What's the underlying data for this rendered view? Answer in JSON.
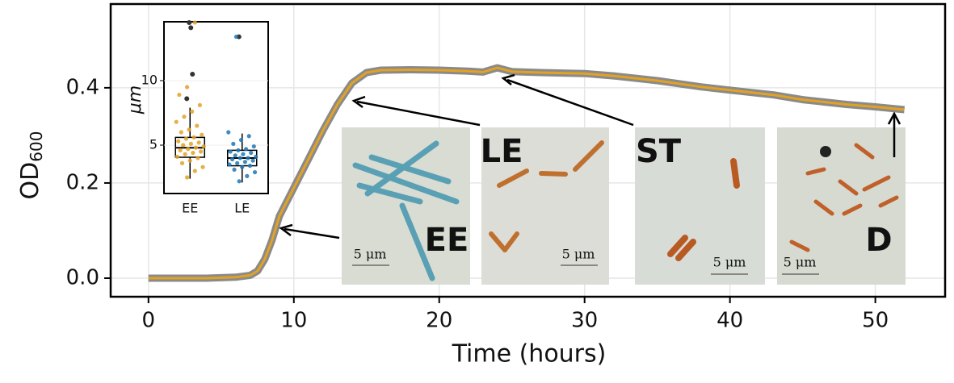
{
  "chart_data": [
    {
      "type": "line",
      "x_label": "Time (hours)",
      "y_label": "OD",
      "y_label_sub": "600",
      "x": [
        0,
        2,
        4,
        6,
        7,
        7.5,
        8,
        8.5,
        9,
        10,
        11,
        12,
        13,
        14,
        15,
        16,
        18,
        20,
        22,
        23,
        24,
        25,
        27,
        30,
        32,
        35,
        38,
        40,
        43,
        45,
        48,
        50,
        52
      ],
      "values": [
        0.0,
        0.0,
        0.0,
        0.002,
        0.006,
        0.015,
        0.04,
        0.08,
        0.13,
        0.19,
        0.25,
        0.31,
        0.365,
        0.41,
        0.432,
        0.437,
        0.438,
        0.437,
        0.435,
        0.433,
        0.442,
        0.434,
        0.432,
        0.43,
        0.425,
        0.415,
        0.402,
        0.395,
        0.385,
        0.375,
        0.365,
        0.36,
        0.354
      ],
      "color": "#e2a224",
      "band_color": "#8a8a8a",
      "xlim": [
        -2.6,
        54.8
      ],
      "ylim": [
        -0.039,
        0.576
      ],
      "xticks": [
        0,
        10,
        20,
        30,
        40,
        50
      ],
      "yticks": [
        {
          "value": 0,
          "label": "0.0"
        },
        {
          "value": 0.2,
          "label": "0.2"
        },
        {
          "value": 0.4,
          "label": "0.4"
        }
      ],
      "grid": true,
      "annotations": [
        "EE",
        "LE",
        "ST",
        "D"
      ],
      "scale_label": "5 μm"
    },
    {
      "type": "box",
      "y_label": "μm",
      "categories": [
        "EE",
        "LE"
      ],
      "colors": [
        "#e2a224",
        "#1f77b4"
      ],
      "boxes": [
        {
          "whislo": 2.4,
          "q1": 4.06,
          "med": 4.8,
          "q3": 5.6,
          "whishi": 7.9,
          "outliers": [
            8.6,
            10.5,
            14.1,
            14.5
          ]
        },
        {
          "whislo": 2.1,
          "q1": 3.4,
          "med": 4.0,
          "q3": 4.6,
          "whishi": 5.9,
          "outliers": [
            13.4
          ]
        }
      ],
      "points": [
        [
          2.5,
          3.0,
          3.3,
          3.6,
          3.8,
          4.0,
          4.1,
          4.3,
          4.4,
          4.5,
          4.6,
          4.7,
          4.8,
          4.9,
          5.0,
          5.1,
          5.2,
          5.3,
          5.5,
          5.6,
          5.8,
          6.0,
          6.2,
          6.5,
          6.8,
          7.2,
          7.6,
          8.1,
          8.9,
          9.5,
          14.5
        ],
        [
          2.2,
          2.6,
          2.9,
          3.1,
          3.3,
          3.4,
          3.5,
          3.6,
          3.7,
          3.8,
          3.9,
          4.0,
          4.0,
          4.1,
          4.2,
          4.3,
          4.4,
          4.5,
          4.6,
          4.7,
          4.9,
          5.1,
          5.4,
          5.7,
          6.0,
          13.4
        ]
      ],
      "ylim": [
        1.25,
        14.56
      ],
      "yticks": [
        5,
        10
      ]
    }
  ]
}
